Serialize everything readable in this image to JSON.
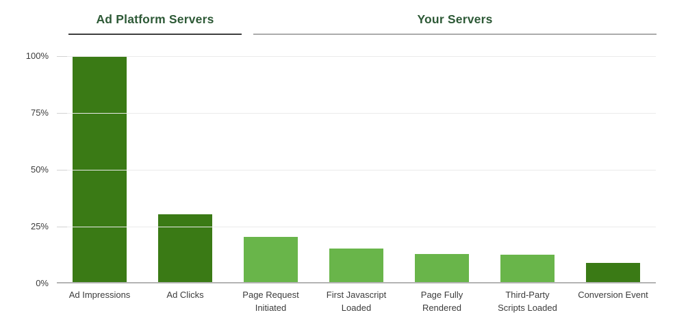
{
  "page": {
    "background": "#ffffff"
  },
  "sections": [
    {
      "label": "Ad Platform Servers",
      "underline_color": "#3d3d3d",
      "header_color": "#2d5936"
    },
    {
      "label": "Your Servers",
      "underline_color": "#ababab",
      "header_color": "#2d5936"
    }
  ],
  "chart_data": {
    "type": "bar",
    "title": "",
    "categories": [
      "Ad Impressions",
      "Ad Clicks",
      "Page Request\nInitiated",
      "First Javascript\nLoaded",
      "Page Fully\nRendered",
      "Third-Party\nScripts Loaded",
      "Conversion Event"
    ],
    "values": [
      100,
      30,
      20,
      15,
      12.5,
      12,
      8.5
    ],
    "unit": "%",
    "yticks": [
      "0%",
      "25%",
      "50%",
      "75%",
      "100%"
    ],
    "ylim": [
      0,
      100
    ],
    "grid": true,
    "legend": "none",
    "bar_color_keys": [
      "dark",
      "dark",
      "light",
      "light",
      "light",
      "light",
      "dark"
    ],
    "palette": {
      "dark": "#3A7A15",
      "light": "#69B54A"
    },
    "axis_text_color": "#3b3b3b",
    "gridline_color": "#eaeaea",
    "baseline_color": "#b3b3b3",
    "sections": [
      {
        "label": "Ad Platform Servers",
        "covers_bars": [
          0,
          1
        ]
      },
      {
        "label": "Your Servers",
        "covers_bars": [
          2,
          3,
          4,
          5,
          6
        ]
      }
    ]
  }
}
